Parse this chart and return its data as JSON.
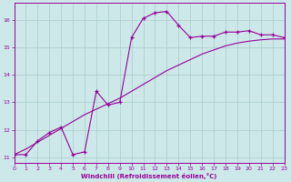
{
  "x": [
    0,
    1,
    2,
    3,
    4,
    5,
    6,
    7,
    8,
    9,
    10,
    11,
    12,
    13,
    14,
    15,
    16,
    17,
    18,
    19,
    20,
    21,
    22,
    23
  ],
  "line1_y": [
    11.1,
    11.1,
    11.6,
    11.9,
    12.1,
    11.1,
    11.2,
    13.4,
    12.9,
    13.0,
    15.35,
    16.05,
    16.25,
    16.3,
    15.8,
    15.35,
    15.4,
    15.4,
    15.55,
    15.55,
    15.6,
    15.45,
    15.45,
    15.35
  ],
  "line2_y": [
    11.1,
    11.3,
    11.55,
    11.8,
    12.05,
    12.3,
    12.55,
    12.75,
    12.95,
    13.15,
    13.4,
    13.65,
    13.9,
    14.15,
    14.35,
    14.55,
    14.75,
    14.9,
    15.05,
    15.15,
    15.22,
    15.27,
    15.3,
    15.3
  ],
  "xlim": [
    0,
    23
  ],
  "ylim": [
    10.8,
    16.6
  ],
  "yticks": [
    11,
    12,
    13,
    14,
    15,
    16
  ],
  "xticks": [
    0,
    1,
    2,
    3,
    4,
    5,
    6,
    7,
    8,
    9,
    10,
    11,
    12,
    13,
    14,
    15,
    16,
    17,
    18,
    19,
    20,
    21,
    22,
    23
  ],
  "xlabel": "Windchill (Refroidissement éolien,°C)",
  "line_color": "#990099",
  "bg_color": "#cce8e8",
  "grid_color": "#aacccc",
  "marker": "+"
}
